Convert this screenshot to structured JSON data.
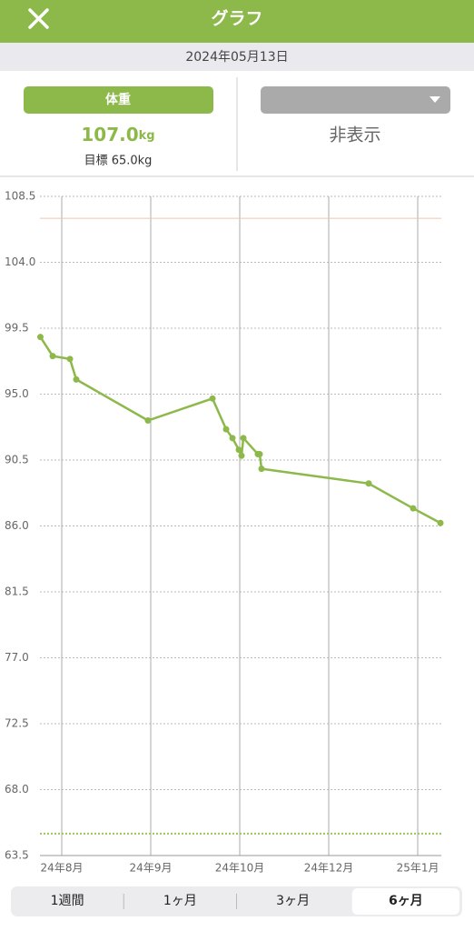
{
  "header": {
    "title": "グラフ"
  },
  "date": "2024年05月13日",
  "panel": {
    "left_button": "体重",
    "weight": "107.0",
    "weight_unit": "kg",
    "target": "目標 65.0kg",
    "right_value": "非表示"
  },
  "chart_data": {
    "type": "line",
    "x": [
      0.76,
      0.898,
      1.092,
      1.163,
      1.969,
      2.694,
      2.847,
      2.918,
      2.99,
      3.02,
      3.041,
      3.204,
      3.224,
      3.245,
      4.449,
      4.949,
      5.255
    ],
    "series": [
      {
        "color": "#8db84a",
        "values": [
          98.9,
          97.6,
          97.4,
          96.0,
          93.2,
          94.7,
          92.6,
          92.0,
          91.2,
          90.8,
          92.0,
          90.9,
          90.9,
          89.9,
          88.9,
          87.2,
          86.2
        ]
      }
    ],
    "xlim": [
      0.755,
      5.265
    ],
    "xticks": [
      {
        "value": 1,
        "label": "24年8月"
      },
      {
        "value": 2,
        "label": "24年9月"
      },
      {
        "value": 3,
        "label": "24年10月"
      },
      {
        "value": 4,
        "label": "24年12月"
      },
      {
        "value": 5,
        "label": "25年1月"
      }
    ],
    "ylim": [
      63.5,
      108.5
    ],
    "yticks": [
      63.5,
      {
        "value": 68,
        "label": "68.0"
      },
      72.5,
      {
        "value": 77,
        "label": "77.0"
      },
      81.5,
      {
        "value": 86,
        "label": "86.0"
      },
      90.5,
      {
        "value": 95,
        "label": "95.0"
      },
      99.5,
      {
        "value": 104,
        "label": "104.0"
      },
      108.5
    ],
    "reference_lines": [
      {
        "value": 107.0,
        "color": "#f0c8a8",
        "style": "solid"
      },
      {
        "value": 65.0,
        "color": "#9cc55a",
        "style": "dotted"
      }
    ],
    "grid": true
  },
  "segments": {
    "items": [
      "1週間",
      "1ヶ月",
      "3ヶ月",
      "6ヶ月"
    ],
    "selected": 3
  }
}
